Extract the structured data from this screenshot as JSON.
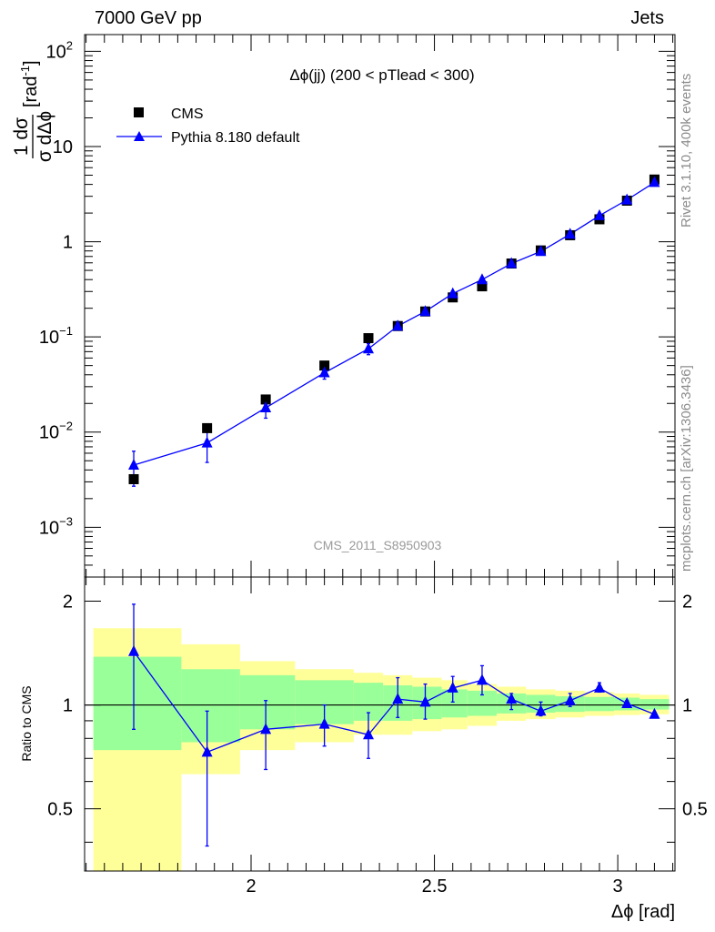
{
  "header": {
    "left": "7000 GeV pp",
    "right": "Jets"
  },
  "side_labels": {
    "rivet": "Rivet 3.1.10,  400k events",
    "source": "mcplots.cern.ch [arXiv:1306.3436]"
  },
  "colors": {
    "cms": "#000000",
    "pythia": "#0000ff",
    "band_inner": "#99ff99",
    "band_outer": "#ffff99",
    "side_text": "#8c8c8c"
  },
  "chart_data": [
    {
      "type": "scatter",
      "panel": "main",
      "title": "Δϕ(jj) (200 < pTlead <  300)",
      "watermark": "CMS_2011_S8950903",
      "ylabel_top": "1 dσ",
      "ylabel_bottom": "σ dΔϕ",
      "ylabel_unit": "[rad",
      "ylabel_unit_sup": "-1",
      "ylabel_unit_end": "]",
      "yscale": "log",
      "xlim": [
        1.546,
        3.156
      ],
      "ylim": [
        0.0003,
        150
      ],
      "y_tick_labels": [
        {
          "base": "10",
          "exp": "2",
          "value": 100
        },
        {
          "base": "10",
          "exp": "",
          "value": 10
        },
        {
          "base": "1",
          "exp": "",
          "value": 1
        },
        {
          "base": "10",
          "exp": "−1",
          "value": 0.1
        },
        {
          "base": "10",
          "exp": "−2",
          "value": 0.01
        },
        {
          "base": "10",
          "exp": "−3",
          "value": 0.001
        }
      ],
      "legend": {
        "position": "top-left",
        "entries": [
          {
            "label": "CMS",
            "marker": "square",
            "color": "#000000"
          },
          {
            "label": "Pythia 8.180 default",
            "marker": "triangle",
            "color": "#0000ff"
          }
        ]
      },
      "series": [
        {
          "name": "CMS",
          "x": [
            1.68,
            1.88,
            2.04,
            2.2,
            2.32,
            2.4,
            2.475,
            2.55,
            2.63,
            2.71,
            2.79,
            2.87,
            2.95,
            3.025,
            3.1
          ],
          "y": [
            0.0032,
            0.011,
            0.022,
            0.05,
            0.097,
            0.13,
            0.185,
            0.26,
            0.34,
            0.59,
            0.81,
            1.17,
            1.72,
            2.7,
            4.5
          ]
        },
        {
          "name": "Pythia 8.180 default",
          "x": [
            1.68,
            1.88,
            2.04,
            2.2,
            2.32,
            2.4,
            2.475,
            2.55,
            2.63,
            2.71,
            2.79,
            2.87,
            2.95,
            3.025,
            3.1
          ],
          "y": [
            0.0045,
            0.0077,
            0.018,
            0.042,
            0.075,
            0.13,
            0.185,
            0.285,
            0.4,
            0.59,
            0.79,
            1.2,
            1.88,
            2.75,
            4.2
          ],
          "y_low": [
            0.0027,
            0.0048,
            0.014,
            0.036,
            0.065,
            0.118,
            0.175,
            0.27,
            0.38,
            0.575,
            0.77,
            1.16,
            1.82,
            2.7,
            4.15
          ],
          "y_high": [
            0.0063,
            0.0105,
            0.022,
            0.048,
            0.085,
            0.145,
            0.197,
            0.3,
            0.42,
            0.61,
            0.81,
            1.24,
            1.94,
            2.8,
            4.25
          ]
        }
      ]
    },
    {
      "type": "scatter",
      "panel": "ratio",
      "ylabel": "Ratio to CMS",
      "xlabel": "Δϕ [rad]",
      "xlim": [
        1.546,
        3.156
      ],
      "ylim": [
        0.33,
        2.35
      ],
      "x_tick_labels": [
        "2",
        "2.5",
        "3"
      ],
      "y_tick_labels": [
        "2",
        "1",
        "0.5"
      ],
      "reference_line": 1,
      "bands": [
        {
          "x0": 1.57,
          "x1": 1.81,
          "inner": [
            0.74,
            1.38
          ],
          "outer": [
            0.0,
            1.67
          ]
        },
        {
          "x0": 1.81,
          "x1": 1.97,
          "inner": [
            0.78,
            1.27
          ],
          "outer": [
            0.63,
            1.5
          ]
        },
        {
          "x0": 1.97,
          "x1": 2.12,
          "inner": [
            0.85,
            1.22
          ],
          "outer": [
            0.74,
            1.34
          ]
        },
        {
          "x0": 2.12,
          "x1": 2.28,
          "inner": [
            0.88,
            1.18
          ],
          "outer": [
            0.78,
            1.27
          ]
        },
        {
          "x0": 2.28,
          "x1": 2.36,
          "inner": [
            0.9,
            1.16
          ],
          "outer": [
            0.82,
            1.24
          ]
        },
        {
          "x0": 2.36,
          "x1": 2.44,
          "inner": [
            0.9,
            1.14
          ],
          "outer": [
            0.82,
            1.22
          ]
        },
        {
          "x0": 2.44,
          "x1": 2.52,
          "inner": [
            0.91,
            1.13
          ],
          "outer": [
            0.84,
            1.2
          ]
        },
        {
          "x0": 2.52,
          "x1": 2.59,
          "inner": [
            0.92,
            1.11
          ],
          "outer": [
            0.85,
            1.18
          ]
        },
        {
          "x0": 2.59,
          "x1": 2.67,
          "inner": [
            0.93,
            1.1
          ],
          "outer": [
            0.87,
            1.15
          ]
        },
        {
          "x0": 2.67,
          "x1": 2.75,
          "inner": [
            0.945,
            1.08
          ],
          "outer": [
            0.9,
            1.13
          ]
        },
        {
          "x0": 2.75,
          "x1": 2.83,
          "inner": [
            0.95,
            1.07
          ],
          "outer": [
            0.91,
            1.11
          ]
        },
        {
          "x0": 2.83,
          "x1": 2.91,
          "inner": [
            0.955,
            1.06
          ],
          "outer": [
            0.92,
            1.1
          ]
        },
        {
          "x0": 2.91,
          "x1": 2.99,
          "inner": [
            0.96,
            1.055
          ],
          "outer": [
            0.93,
            1.09
          ]
        },
        {
          "x0": 2.99,
          "x1": 3.06,
          "inner": [
            0.965,
            1.05
          ],
          "outer": [
            0.935,
            1.08
          ]
        },
        {
          "x0": 3.06,
          "x1": 3.14,
          "inner": [
            0.97,
            1.04
          ],
          "outer": [
            0.94,
            1.07
          ]
        }
      ],
      "series": [
        {
          "name": "Pythia 8.180 default",
          "x": [
            1.68,
            1.88,
            2.04,
            2.2,
            2.32,
            2.4,
            2.475,
            2.55,
            2.63,
            2.71,
            2.79,
            2.87,
            2.95,
            3.025,
            3.1
          ],
          "y": [
            1.43,
            0.73,
            0.85,
            0.88,
            0.82,
            1.04,
            1.02,
            1.12,
            1.18,
            1.04,
            0.96,
            1.03,
            1.12,
            1.01,
            0.94
          ],
          "y_low": [
            0.85,
            0.39,
            0.65,
            0.76,
            0.7,
            0.92,
            0.91,
            1.02,
            1.07,
            0.97,
            0.93,
            0.99,
            1.09,
            0.99,
            0.94
          ],
          "y_high": [
            1.96,
            0.96,
            1.03,
            1.0,
            0.95,
            1.2,
            1.15,
            1.21,
            1.3,
            1.08,
            1.02,
            1.08,
            1.16,
            1.03,
            0.94
          ]
        }
      ]
    }
  ]
}
